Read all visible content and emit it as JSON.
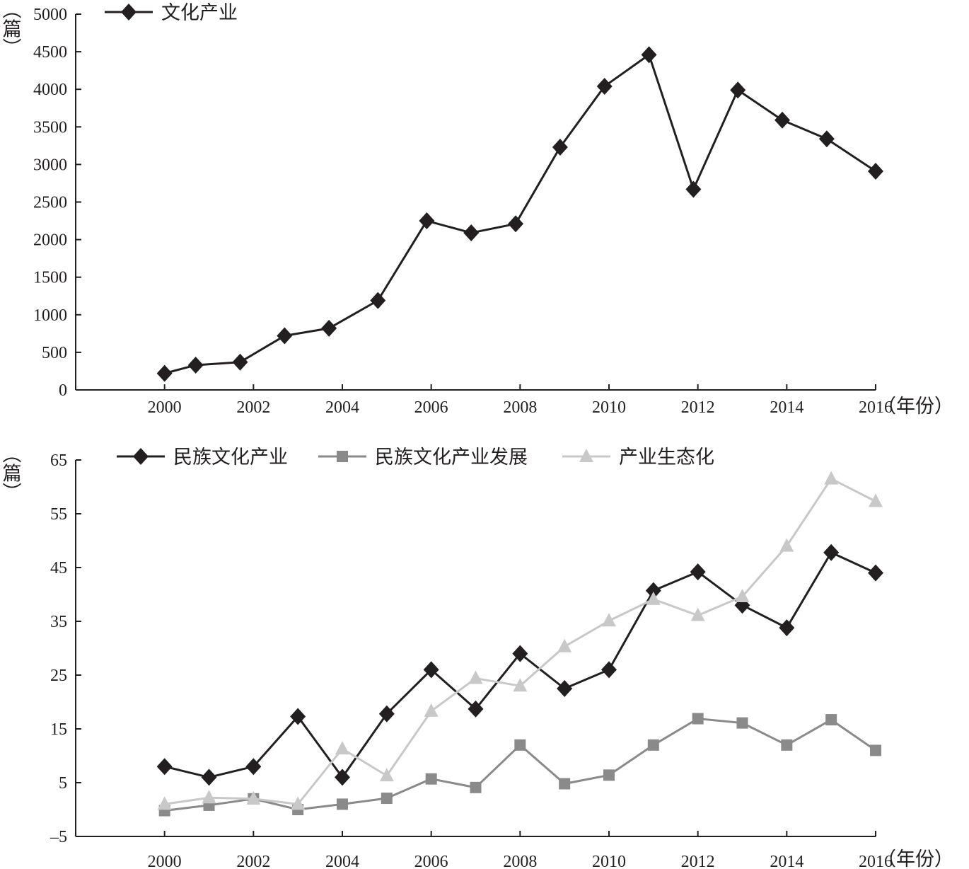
{
  "chart_data": [
    {
      "type": "line",
      "ylabel": "（篇）",
      "xlabel": "（年份）",
      "ylim": [
        0,
        5000
      ],
      "y_ticks": [
        0,
        500,
        1000,
        1500,
        2000,
        2500,
        3000,
        3500,
        4000,
        4500,
        5000
      ],
      "x_ticks": [
        2000,
        2002,
        2004,
        2006,
        2008,
        2010,
        2012,
        2014,
        2016
      ],
      "legend_position": "top-left",
      "series": [
        {
          "name": "文化产业",
          "color": "#231f20",
          "marker": "diamond",
          "points": [
            [
              2000,
              220
            ],
            [
              2000.7,
              330
            ],
            [
              2001.7,
              370
            ],
            [
              2002.7,
              720
            ],
            [
              2003.7,
              820
            ],
            [
              2004.8,
              1190
            ],
            [
              2005.9,
              2250
            ],
            [
              2006.9,
              2090
            ],
            [
              2007.9,
              2210
            ],
            [
              2008.9,
              3230
            ],
            [
              2009.9,
              4040
            ],
            [
              2010.9,
              4460
            ],
            [
              2011.9,
              2670
            ],
            [
              2012.9,
              3990
            ],
            [
              2013.9,
              3590
            ],
            [
              2014.9,
              3340
            ],
            [
              2016,
              2910
            ]
          ]
        }
      ]
    },
    {
      "type": "line",
      "ylabel": "（篇）",
      "xlabel": "（年份）",
      "ylim": [
        -5,
        65
      ],
      "y_ticks": [
        -5,
        5,
        15,
        25,
        35,
        45,
        55,
        65
      ],
      "y_tick_labels": [
        "–5",
        "5",
        "15",
        "25",
        "35",
        "45",
        "55",
        "65"
      ],
      "x_ticks": [
        2000,
        2002,
        2004,
        2006,
        2008,
        2010,
        2012,
        2014,
        2016
      ],
      "legend_position": "top",
      "categories": [
        2000,
        2001,
        2002,
        2003,
        2004,
        2005,
        2006,
        2007,
        2008,
        2009,
        2010,
        2011,
        2012,
        2013,
        2014,
        2015,
        2016
      ],
      "series": [
        {
          "name": "民族文化产业",
          "color": "#231f20",
          "marker": "diamond",
          "values": [
            8,
            6,
            8,
            17.3,
            6,
            17.8,
            26,
            18.7,
            29,
            22.5,
            26,
            40.7,
            44.2,
            38,
            33.8,
            47.8,
            44
          ]
        },
        {
          "name": "民族文化产业发展",
          "color": "#8a8a8a",
          "marker": "square",
          "values": [
            -0.2,
            0.8,
            2,
            0,
            1,
            2.1,
            5.7,
            4.1,
            12,
            4.8,
            6.4,
            12,
            16.9,
            16.1,
            12,
            16.7,
            11
          ]
        },
        {
          "name": "产业生态化",
          "color": "#c8c8c8",
          "marker": "triangle",
          "values": [
            1,
            2.2,
            2,
            1,
            11.3,
            6.3,
            18.3,
            24.4,
            23,
            30.3,
            35.1,
            39.1,
            36.1,
            39.6,
            49,
            61.5,
            57.3
          ]
        }
      ]
    }
  ]
}
